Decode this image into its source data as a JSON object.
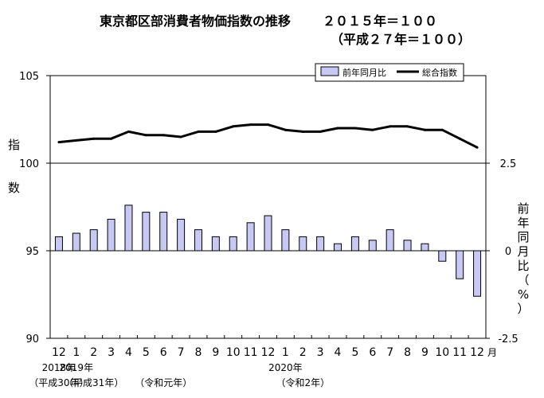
{
  "chart_data": {
    "type": "bar+line",
    "title": {
      "line1": "東京都区部消費者物価指数の推移",
      "base": "２０１５年＝１００",
      "line2": "（平成２７年＝１００）"
    },
    "categories": [
      "12",
      "1",
      "2",
      "3",
      "4",
      "5",
      "6",
      "7",
      "8",
      "9",
      "10",
      "11",
      "12",
      "1",
      "2",
      "3",
      "4",
      "5",
      "6",
      "7",
      "8",
      "9",
      "10",
      "11",
      "12"
    ],
    "month_unit": "月",
    "year_labels": [
      {
        "text": "2018年",
        "index": 0
      },
      {
        "text": "2019年",
        "index": 1
      },
      {
        "text": "2020年",
        "index": 13
      }
    ],
    "era_labels": [
      {
        "text": "（平成30年）",
        "index": 0
      },
      {
        "text": "（平成31年）",
        "index": 2
      },
      {
        "text": "（令和元年）",
        "index": 6
      },
      {
        "text": "（令和2年）",
        "index": 14
      }
    ],
    "left_axis": {
      "label_chars": [
        "指",
        "数"
      ],
      "min": 90,
      "max": 105,
      "ticks": [
        "90",
        "95",
        "100",
        "105"
      ]
    },
    "right_axis": {
      "label_chars": [
        "前",
        "年",
        "同",
        "月",
        "比",
        "（",
        "%",
        "）"
      ],
      "min": -2.5,
      "max": 5.0,
      "tick_values": [
        -2.5,
        0,
        2.5
      ],
      "tick_labels": [
        "-2.5",
        "0",
        "2.5"
      ]
    },
    "series": [
      {
        "name": "総合指数",
        "kind": "line",
        "axis": "left",
        "color": "#000000",
        "values": [
          101.2,
          101.3,
          101.4,
          101.4,
          101.8,
          101.6,
          101.6,
          101.5,
          101.8,
          101.8,
          102.1,
          102.2,
          102.2,
          101.9,
          101.8,
          101.8,
          102.0,
          102.0,
          101.9,
          102.1,
          102.1,
          101.9,
          101.9,
          101.4,
          100.9
        ]
      },
      {
        "name": "前年同月比",
        "kind": "bar",
        "axis": "right",
        "color": "#c8c8f5",
        "values": [
          0.4,
          0.5,
          0.6,
          0.9,
          1.3,
          1.1,
          1.1,
          0.9,
          0.6,
          0.4,
          0.4,
          0.8,
          1.0,
          0.6,
          0.4,
          0.4,
          0.2,
          0.4,
          0.3,
          0.6,
          0.3,
          0.2,
          -0.3,
          -0.8,
          -1.3
        ]
      }
    ],
    "legend": {
      "placement": "top-right"
    },
    "grid": false
  }
}
